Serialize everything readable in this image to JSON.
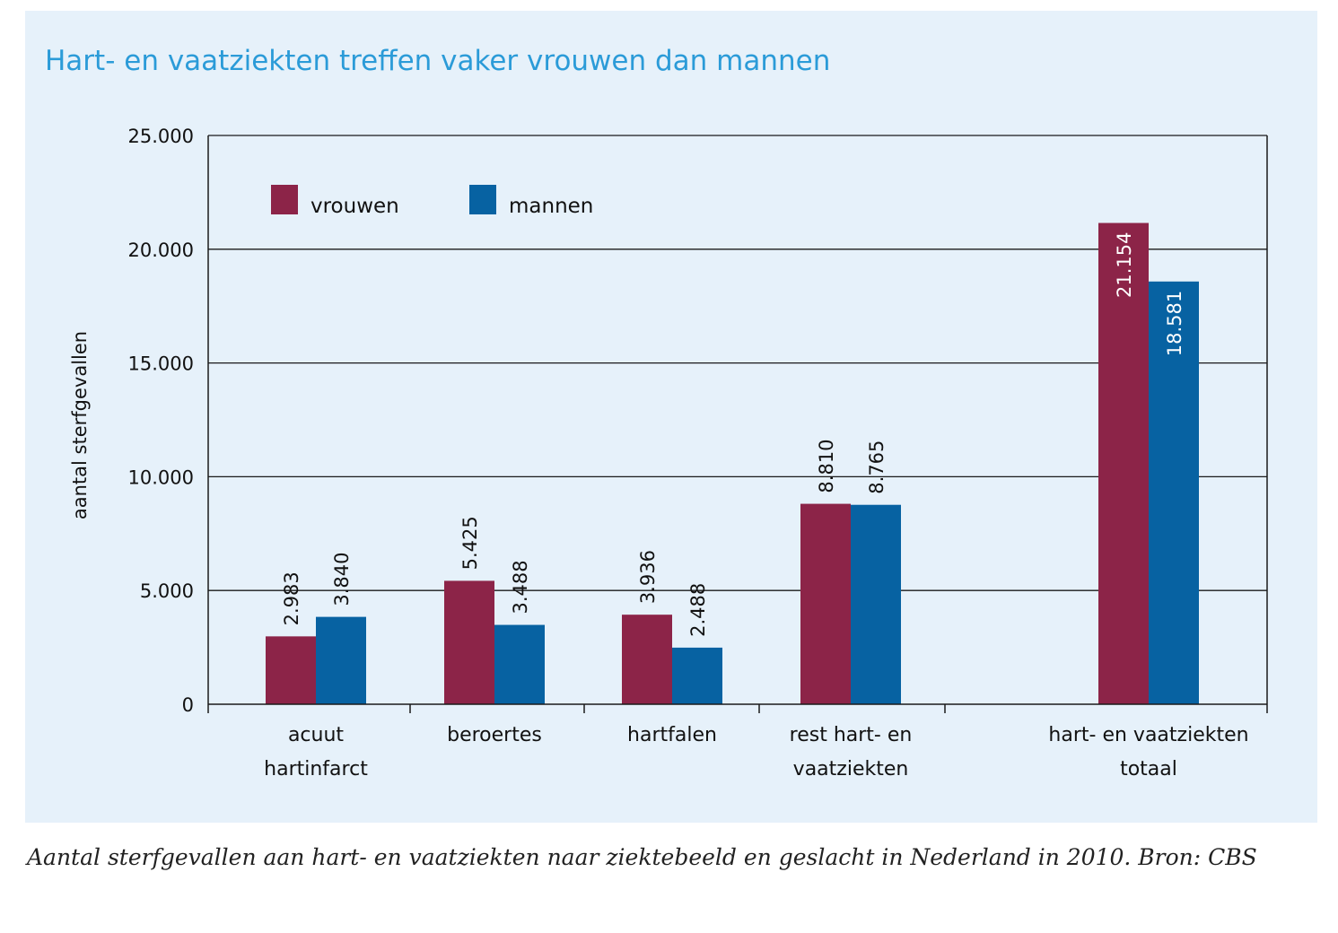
{
  "title": "Hart- en vaatziekten treffen vaker vrouwen dan mannen",
  "caption": "Aantal sterfgevallen aan hart- en vaatziekten naar ziektebeeld en geslacht in Nederland in 2010. Bron: CBS",
  "chart_data": {
    "type": "bar",
    "title": "Hart- en vaatziekten treffen vaker vrouwen dan mannen",
    "xlabel": "",
    "ylabel": "aantal sterfgevallen",
    "ylim": [
      0,
      25000
    ],
    "yticks": [
      0,
      5000,
      10000,
      15000,
      20000,
      25000
    ],
    "ytick_labels": [
      "0",
      "5.000",
      "10.000",
      "15.000",
      "20.000",
      "25.000"
    ],
    "grid": true,
    "legend_position": "top-left",
    "categories": [
      [
        "acuut",
        "hartinfarct"
      ],
      [
        "beroertes"
      ],
      [
        "hartfalen"
      ],
      [
        "rest hart- en",
        "vaatziekten"
      ],
      [
        "hart- en vaatziekten",
        "totaal"
      ]
    ],
    "series": [
      {
        "name": "vrouwen",
        "color": "#8c2448",
        "values": [
          2983,
          5425,
          3936,
          8810,
          21154
        ],
        "labels": [
          "2.983",
          "5.425",
          "3.936",
          "8.810",
          "21.154"
        ]
      },
      {
        "name": "mannen",
        "color": "#0762a2",
        "values": [
          3840,
          3488,
          2488,
          8765,
          18581
        ],
        "labels": [
          "3.840",
          "3.488",
          "2.488",
          "8.765",
          "18.581"
        ]
      }
    ]
  }
}
